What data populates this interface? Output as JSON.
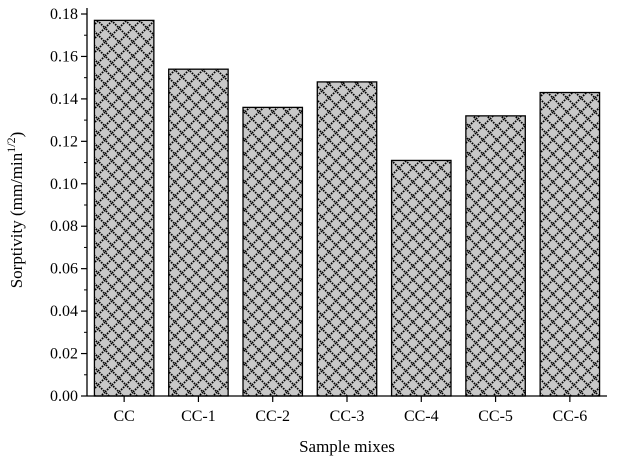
{
  "chart_data": {
    "type": "bar",
    "title": "",
    "xlabel": "Sample mixes",
    "ylabel": {
      "main": "Sorptivity (mm/min",
      "sup": "1/2",
      "close": ")"
    },
    "categories": [
      "CC",
      "CC-1",
      "CC-2",
      "CC-3",
      "CC-4",
      "CC-5",
      "CC-6"
    ],
    "values": [
      0.177,
      0.154,
      0.136,
      0.148,
      0.111,
      0.132,
      0.143
    ],
    "ylim": [
      0,
      0.18
    ],
    "yticks": [
      0.0,
      0.02,
      0.04,
      0.06,
      0.08,
      0.1,
      0.12,
      0.14,
      0.16,
      0.18
    ],
    "ytick_labels": [
      "0.00",
      "0.02",
      "0.04",
      "0.06",
      "0.08",
      "0.10",
      "0.12",
      "0.14",
      "0.16",
      "0.18"
    ],
    "grid": false,
    "legend": "none",
    "bar_fill": "#c8c8c8",
    "bar_pattern": "black diamond crosshatch",
    "pattern_color": "#000000"
  }
}
